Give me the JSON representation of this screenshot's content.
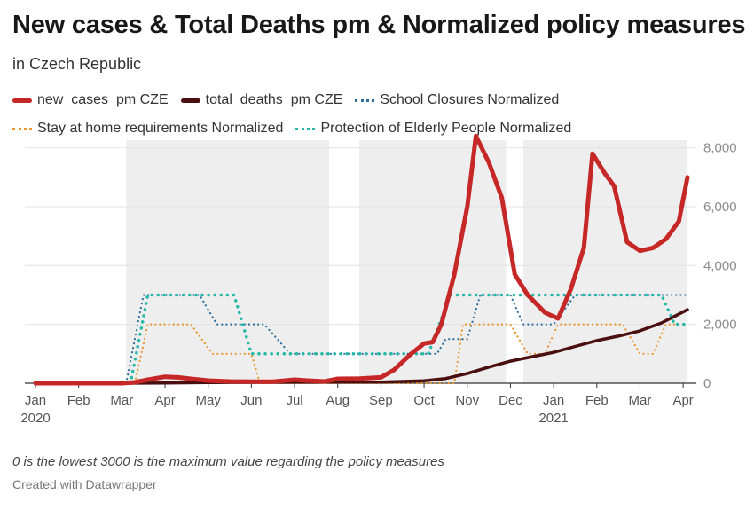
{
  "title": "New cases & Total Deaths pm & Normalized policy measures",
  "subtitle": "in Czech Republic",
  "note": "0 is the lowest 3000 is the maximum value regarding the policy measures",
  "credit": "Created with Datawrapper",
  "chart_data": {
    "type": "line",
    "y_axis": {
      "position": "right",
      "min": 0,
      "max": 8500,
      "ticks": [
        0,
        2000,
        4000,
        6000,
        8000
      ],
      "tick_labels": [
        "0",
        "2,000",
        "4,000",
        "6,000",
        "8,000"
      ]
    },
    "x_axis": {
      "min": 0,
      "max": 15.1,
      "ticks": [
        {
          "x": 0,
          "label": "Jan",
          "year": "2020"
        },
        {
          "x": 1,
          "label": "Feb"
        },
        {
          "x": 2,
          "label": "Mar"
        },
        {
          "x": 3,
          "label": "Apr"
        },
        {
          "x": 4,
          "label": "May"
        },
        {
          "x": 5,
          "label": "Jun"
        },
        {
          "x": 6,
          "label": "Jul"
        },
        {
          "x": 7,
          "label": "Aug"
        },
        {
          "x": 8,
          "label": "Sep"
        },
        {
          "x": 9,
          "label": "Oct"
        },
        {
          "x": 10,
          "label": "Nov"
        },
        {
          "x": 11,
          "label": "Dec"
        },
        {
          "x": 12,
          "label": "Jan",
          "year": "2021"
        },
        {
          "x": 13,
          "label": "Feb"
        },
        {
          "x": 14,
          "label": "Mar"
        },
        {
          "x": 15,
          "label": "Apr"
        }
      ]
    },
    "shaded_ranges": [
      [
        2.1,
        6.8
      ],
      [
        7.5,
        10.9
      ],
      [
        11.3,
        15.1
      ]
    ],
    "series": [
      {
        "name": "new_cases_pm CZE",
        "style": "solid",
        "color": "#c62828",
        "width": 5,
        "points": [
          [
            0,
            0
          ],
          [
            0.5,
            0
          ],
          [
            1,
            0
          ],
          [
            1.5,
            0
          ],
          [
            2,
            0
          ],
          [
            2.3,
            30
          ],
          [
            2.6,
            120
          ],
          [
            3,
            220
          ],
          [
            3.3,
            200
          ],
          [
            3.6,
            150
          ],
          [
            4,
            90
          ],
          [
            4.5,
            60
          ],
          [
            5,
            50
          ],
          [
            5.5,
            50
          ],
          [
            6,
            120
          ],
          [
            6.3,
            90
          ],
          [
            6.7,
            60
          ],
          [
            7,
            150
          ],
          [
            7.5,
            160
          ],
          [
            8,
            200
          ],
          [
            8.3,
            450
          ],
          [
            8.7,
            1000
          ],
          [
            9,
            1350
          ],
          [
            9.2,
            1400
          ],
          [
            9.4,
            2000
          ],
          [
            9.7,
            3700
          ],
          [
            10,
            6000
          ],
          [
            10.2,
            8400
          ],
          [
            10.5,
            7500
          ],
          [
            10.8,
            6300
          ],
          [
            11.1,
            3700
          ],
          [
            11.4,
            3000
          ],
          [
            11.8,
            2400
          ],
          [
            12.1,
            2200
          ],
          [
            12.4,
            3200
          ],
          [
            12.7,
            4600
          ],
          [
            12.9,
            7800
          ],
          [
            13.2,
            7100
          ],
          [
            13.4,
            6700
          ],
          [
            13.7,
            4800
          ],
          [
            14,
            4500
          ],
          [
            14.3,
            4600
          ],
          [
            14.6,
            4900
          ],
          [
            14.9,
            5500
          ],
          [
            15.1,
            7000
          ]
        ]
      },
      {
        "name": "total_deaths_pm CZE",
        "style": "solid",
        "color": "#4a0f0f",
        "width": 3.5,
        "points": [
          [
            0,
            0
          ],
          [
            2,
            0
          ],
          [
            3,
            8
          ],
          [
            4,
            22
          ],
          [
            5,
            30
          ],
          [
            6,
            33
          ],
          [
            7,
            35
          ],
          [
            8,
            40
          ],
          [
            9,
            80
          ],
          [
            9.5,
            160
          ],
          [
            10,
            330
          ],
          [
            10.5,
            550
          ],
          [
            11,
            750
          ],
          [
            11.5,
            900
          ],
          [
            12,
            1050
          ],
          [
            12.5,
            1250
          ],
          [
            13,
            1450
          ],
          [
            13.5,
            1600
          ],
          [
            14,
            1780
          ],
          [
            14.5,
            2050
          ],
          [
            15.1,
            2500
          ]
        ]
      },
      {
        "name": "School Closures Normalized",
        "style": "dotted",
        "color": "#2e6f9e",
        "width": 2.2,
        "points": [
          [
            0,
            0
          ],
          [
            2.1,
            0
          ],
          [
            2.5,
            3000
          ],
          [
            3.8,
            3000
          ],
          [
            4.2,
            2000
          ],
          [
            5.3,
            2000
          ],
          [
            5.9,
            1000
          ],
          [
            9.3,
            1000
          ],
          [
            9.5,
            1500
          ],
          [
            10,
            1500
          ],
          [
            10.3,
            3000
          ],
          [
            11,
            3000
          ],
          [
            11.3,
            2000
          ],
          [
            12,
            2000
          ],
          [
            12.5,
            3000
          ],
          [
            15.1,
            3000
          ]
        ]
      },
      {
        "name": "Stay at home requirements Normalized",
        "style": "dotted",
        "color": "#e8962d",
        "width": 2.2,
        "points": [
          [
            0,
            0
          ],
          [
            2.3,
            0
          ],
          [
            2.6,
            2000
          ],
          [
            3.6,
            2000
          ],
          [
            4.1,
            1000
          ],
          [
            5,
            1000
          ],
          [
            5.2,
            0
          ],
          [
            9.7,
            0
          ],
          [
            9.9,
            2000
          ],
          [
            11,
            2000
          ],
          [
            11.4,
            1000
          ],
          [
            11.8,
            1000
          ],
          [
            12.1,
            2000
          ],
          [
            13.6,
            2000
          ],
          [
            14,
            1000
          ],
          [
            14.3,
            1000
          ],
          [
            14.6,
            2000
          ],
          [
            15.1,
            2000
          ]
        ]
      },
      {
        "name": "Protection of Elderly People Normalized",
        "style": "dotted",
        "color": "#26b8a6",
        "width": 3.5,
        "points": [
          [
            0,
            0
          ],
          [
            2.2,
            0
          ],
          [
            2.6,
            3000
          ],
          [
            4.6,
            3000
          ],
          [
            5,
            1000
          ],
          [
            9.1,
            1000
          ],
          [
            9.6,
            3000
          ],
          [
            14.5,
            3000
          ],
          [
            14.8,
            2000
          ],
          [
            15.1,
            2000
          ]
        ]
      }
    ]
  }
}
